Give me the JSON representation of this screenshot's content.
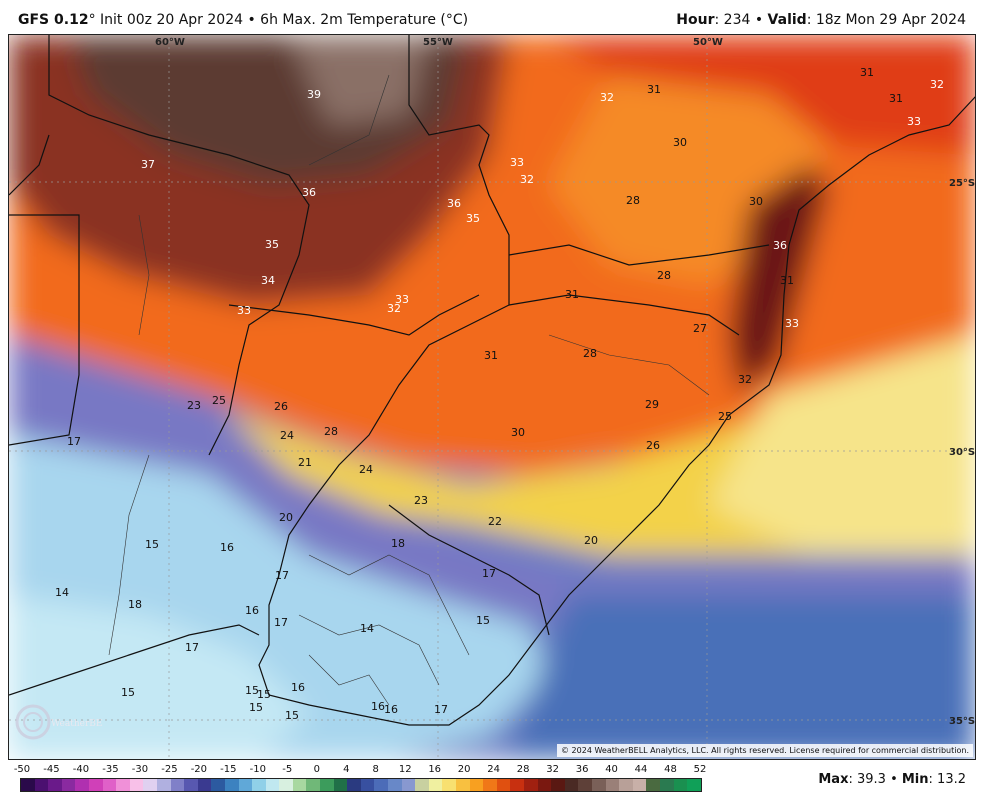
{
  "header": {
    "model": "GFS 0.12",
    "init": "° Init 00z 20 Apr 2024 • 6h Max. 2m Temperature (°C)",
    "hour_label": "Hour",
    "hour_value": ": 234 • ",
    "valid_label": "Valid",
    "valid_value": ": 18z Mon 29 Apr 2024"
  },
  "grid_labels": {
    "lon60": "60°W",
    "lon55": "55°W",
    "lon50": "50°W",
    "lat25": "25°S",
    "lat30": "30°S",
    "lat35": "35°S"
  },
  "copyright": "© 2024 WeatherBELL Analytics, LLC. All rights reserved. License required for commercial distribution.",
  "logo_text": "WeatherBELL",
  "colorbar": {
    "ticks": [
      "-50",
      "-45",
      "-40",
      "-35",
      "-30",
      "-25",
      "-20",
      "-15",
      "-10",
      "-5",
      "0",
      "4",
      "8",
      "12",
      "16",
      "20",
      "24",
      "28",
      "32",
      "36",
      "40",
      "44",
      "48",
      "52"
    ],
    "colors": [
      "#2a0a4a",
      "#4b1070",
      "#6a1a8a",
      "#8a2aa0",
      "#b030b0",
      "#d040b8",
      "#e060c8",
      "#f090d8",
      "#f8c0e8",
      "#e0d0f0",
      "#b0b0e0",
      "#8080c8",
      "#5858b0",
      "#3a3a90",
      "#2c5aa0",
      "#3c82c0",
      "#60a8d8",
      "#90d0e8",
      "#c0e8f0",
      "#d8f0e0",
      "#a8d8a0",
      "#70b878",
      "#3c9c5c",
      "#207048",
      "#2a3a80",
      "#3850a0",
      "#4c6cb8",
      "#6888c8",
      "#8898d0",
      "#c8d0a0",
      "#f0f0a0",
      "#f8e070",
      "#f8c040",
      "#f8a020",
      "#f07818",
      "#e05010",
      "#c83010",
      "#a02010",
      "#7a1810",
      "#5a1812",
      "#4a2a24",
      "#5e4038",
      "#7a6058",
      "#9a8078",
      "#b8a098",
      "#c8b0a8",
      "#4a6a40",
      "#2a7a50",
      "#1a9050",
      "#10a058"
    ]
  },
  "stats": {
    "max_label": "Max",
    "max_value": ": 39.3 • ",
    "min_label": "Min",
    "min_value": ": 13.2"
  },
  "temperature_labels": [
    {
      "v": "39"
    },
    {
      "v": "37"
    },
    {
      "v": "36"
    },
    {
      "v": "36"
    },
    {
      "v": "35"
    },
    {
      "v": "35"
    },
    {
      "v": "34"
    },
    {
      "v": "33"
    },
    {
      "v": "33"
    },
    {
      "v": "32"
    },
    {
      "v": "33"
    },
    {
      "v": "32"
    },
    {
      "v": "32"
    },
    {
      "v": "31"
    },
    {
      "v": "30"
    },
    {
      "v": "28"
    },
    {
      "v": "30"
    },
    {
      "v": "31"
    },
    {
      "v": "31"
    },
    {
      "v": "32"
    },
    {
      "v": "33"
    },
    {
      "v": "36"
    },
    {
      "v": "31"
    },
    {
      "v": "33"
    },
    {
      "v": "28"
    },
    {
      "v": "31"
    },
    {
      "v": "27"
    },
    {
      "v": "31"
    },
    {
      "v": "28"
    },
    {
      "v": "32"
    },
    {
      "v": "29"
    },
    {
      "v": "25"
    },
    {
      "v": "30"
    },
    {
      "v": "26"
    },
    {
      "v": "23"
    },
    {
      "v": "25"
    },
    {
      "v": "26"
    },
    {
      "v": "24"
    },
    {
      "v": "28"
    },
    {
      "v": "21"
    },
    {
      "v": "24"
    },
    {
      "v": "17"
    },
    {
      "v": "23"
    },
    {
      "v": "22"
    },
    {
      "v": "20"
    },
    {
      "v": "20"
    },
    {
      "v": "18"
    },
    {
      "v": "15"
    },
    {
      "v": "16"
    },
    {
      "v": "17"
    },
    {
      "v": "17"
    },
    {
      "v": "14"
    },
    {
      "v": "18"
    },
    {
      "v": "16"
    },
    {
      "v": "17"
    },
    {
      "v": "14"
    },
    {
      "v": "15"
    },
    {
      "v": "17"
    },
    {
      "v": "15"
    },
    {
      "v": "15"
    },
    {
      "v": "15"
    },
    {
      "v": "16"
    },
    {
      "v": "15"
    },
    {
      "v": "15"
    },
    {
      "v": "16"
    },
    {
      "v": "16"
    },
    {
      "v": "17"
    }
  ]
}
